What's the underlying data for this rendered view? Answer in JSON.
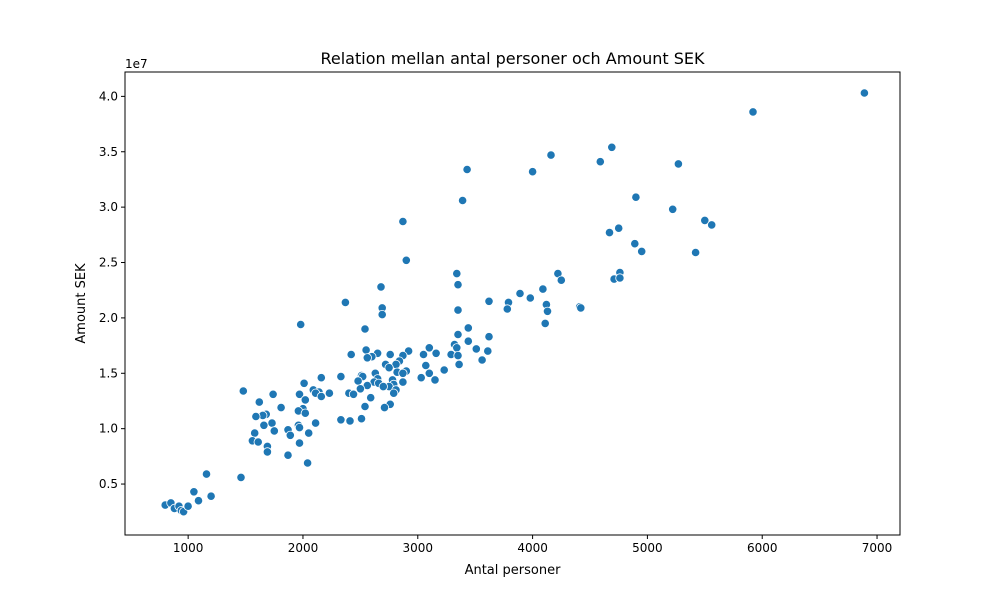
{
  "chart_data": {
    "type": "scatter",
    "title": "Relation mellan antal personer och Amount SEK",
    "xlabel": "Antal personer",
    "ylabel": "Amount SEK",
    "offset_label": "1e7",
    "xlim": [
      450,
      7200
    ],
    "ylim": [
      0.04,
      4.22
    ],
    "xticks": [
      1000,
      2000,
      3000,
      4000,
      5000,
      6000,
      7000
    ],
    "xtick_labels": [
      "1000",
      "2000",
      "3000",
      "4000",
      "5000",
      "6000",
      "7000"
    ],
    "yticks": [
      0.5,
      1.0,
      1.5,
      2.0,
      2.5,
      3.0,
      3.5,
      4.0
    ],
    "ytick_labels": [
      "0.5",
      "1.0",
      "1.5",
      "2.0",
      "2.5",
      "3.0",
      "3.5",
      "4.0"
    ],
    "grid": false,
    "marker_color": "#1f77b4",
    "points": [
      [
        6890,
        4.03
      ],
      [
        5920,
        3.86
      ],
      [
        4690,
        3.54
      ],
      [
        4590,
        3.41
      ],
      [
        4160,
        3.47
      ],
      [
        3430,
        3.34
      ],
      [
        4000,
        3.32
      ],
      [
        5270,
        3.39
      ],
      [
        3390,
        3.06
      ],
      [
        4900,
        3.09
      ],
      [
        5220,
        2.98
      ],
      [
        2870,
        2.87
      ],
      [
        5500,
        2.88
      ],
      [
        5560,
        2.84
      ],
      [
        4750,
        2.81
      ],
      [
        4670,
        2.77
      ],
      [
        4890,
        2.67
      ],
      [
        4950,
        2.6
      ],
      [
        5420,
        2.59
      ],
      [
        2900,
        2.52
      ],
      [
        4760,
        2.41
      ],
      [
        4220,
        2.4
      ],
      [
        3340,
        2.4
      ],
      [
        4250,
        2.34
      ],
      [
        4710,
        2.35
      ],
      [
        4760,
        2.36
      ],
      [
        3350,
        2.3
      ],
      [
        2680,
        2.28
      ],
      [
        4090,
        2.26
      ],
      [
        3890,
        2.22
      ],
      [
        3980,
        2.18
      ],
      [
        3620,
        2.15
      ],
      [
        3790,
        2.14
      ],
      [
        2370,
        2.14
      ],
      [
        4120,
        2.12
      ],
      [
        4410,
        2.1
      ],
      [
        4420,
        2.09
      ],
      [
        2690,
        2.09
      ],
      [
        3780,
        2.08
      ],
      [
        3350,
        2.07
      ],
      [
        4130,
        2.06
      ],
      [
        2690,
        2.03
      ],
      [
        4110,
        1.95
      ],
      [
        1980,
        1.94
      ],
      [
        3440,
        1.91
      ],
      [
        2540,
        1.9
      ],
      [
        3350,
        1.85
      ],
      [
        3620,
        1.83
      ],
      [
        3440,
        1.79
      ],
      [
        3320,
        1.76
      ],
      [
        3340,
        1.73
      ],
      [
        3100,
        1.73
      ],
      [
        3510,
        1.72
      ],
      [
        3610,
        1.7
      ],
      [
        2920,
        1.7
      ],
      [
        2550,
        1.71
      ],
      [
        3160,
        1.68
      ],
      [
        2420,
        1.67
      ],
      [
        2650,
        1.68
      ],
      [
        2760,
        1.67
      ],
      [
        3050,
        1.67
      ],
      [
        3290,
        1.67
      ],
      [
        3350,
        1.66
      ],
      [
        2870,
        1.66
      ],
      [
        2600,
        1.65
      ],
      [
        2560,
        1.64
      ],
      [
        3560,
        1.62
      ],
      [
        3360,
        1.58
      ],
      [
        2720,
        1.58
      ],
      [
        2840,
        1.61
      ],
      [
        2810,
        1.58
      ],
      [
        3070,
        1.57
      ],
      [
        2750,
        1.55
      ],
      [
        3230,
        1.53
      ],
      [
        2900,
        1.52
      ],
      [
        2820,
        1.51
      ],
      [
        2630,
        1.5
      ],
      [
        2870,
        1.5
      ],
      [
        2510,
        1.48
      ],
      [
        3100,
        1.5
      ],
      [
        2330,
        1.47
      ],
      [
        2160,
        1.46
      ],
      [
        2520,
        1.47
      ],
      [
        2650,
        1.45
      ],
      [
        2780,
        1.44
      ],
      [
        3030,
        1.46
      ],
      [
        2480,
        1.43
      ],
      [
        3150,
        1.44
      ],
      [
        2620,
        1.42
      ],
      [
        2870,
        1.42
      ],
      [
        2660,
        1.41
      ],
      [
        2790,
        1.4
      ],
      [
        2010,
        1.41
      ],
      [
        2560,
        1.39
      ],
      [
        2750,
        1.38
      ],
      [
        2700,
        1.38
      ],
      [
        2810,
        1.35
      ],
      [
        2090,
        1.35
      ],
      [
        2500,
        1.36
      ],
      [
        2140,
        1.33
      ],
      [
        2400,
        1.32
      ],
      [
        1480,
        1.34
      ],
      [
        2440,
        1.31
      ],
      [
        1740,
        1.31
      ],
      [
        2110,
        1.32
      ],
      [
        2790,
        1.32
      ],
      [
        1970,
        1.31
      ],
      [
        2230,
        1.32
      ],
      [
        2160,
        1.29
      ],
      [
        2590,
        1.28
      ],
      [
        2020,
        1.26
      ],
      [
        1620,
        1.24
      ],
      [
        2760,
        1.22
      ],
      [
        2540,
        1.2
      ],
      [
        2710,
        1.19
      ],
      [
        1810,
        1.19
      ],
      [
        2000,
        1.18
      ],
      [
        1960,
        1.16
      ],
      [
        2020,
        1.14
      ],
      [
        1680,
        1.13
      ],
      [
        1650,
        1.12
      ],
      [
        1590,
        1.11
      ],
      [
        2510,
        1.09
      ],
      [
        2330,
        1.08
      ],
      [
        2410,
        1.07
      ],
      [
        2110,
        1.05
      ],
      [
        1730,
        1.05
      ],
      [
        1660,
        1.03
      ],
      [
        1960,
        1.03
      ],
      [
        1970,
        1.01
      ],
      [
        1870,
        0.99
      ],
      [
        1750,
        0.98
      ],
      [
        2050,
        0.96
      ],
      [
        1890,
        0.94
      ],
      [
        1580,
        0.96
      ],
      [
        1560,
        0.89
      ],
      [
        1610,
        0.88
      ],
      [
        1970,
        0.87
      ],
      [
        1690,
        0.84
      ],
      [
        1690,
        0.79
      ],
      [
        1870,
        0.76
      ],
      [
        2040,
        0.69
      ],
      [
        1160,
        0.59
      ],
      [
        1460,
        0.56
      ],
      [
        1050,
        0.43
      ],
      [
        1200,
        0.39
      ],
      [
        1090,
        0.35
      ],
      [
        800,
        0.31
      ],
      [
        850,
        0.33
      ],
      [
        880,
        0.28
      ],
      [
        920,
        0.3
      ],
      [
        940,
        0.26
      ],
      [
        960,
        0.25
      ],
      [
        1000,
        0.3
      ]
    ]
  }
}
